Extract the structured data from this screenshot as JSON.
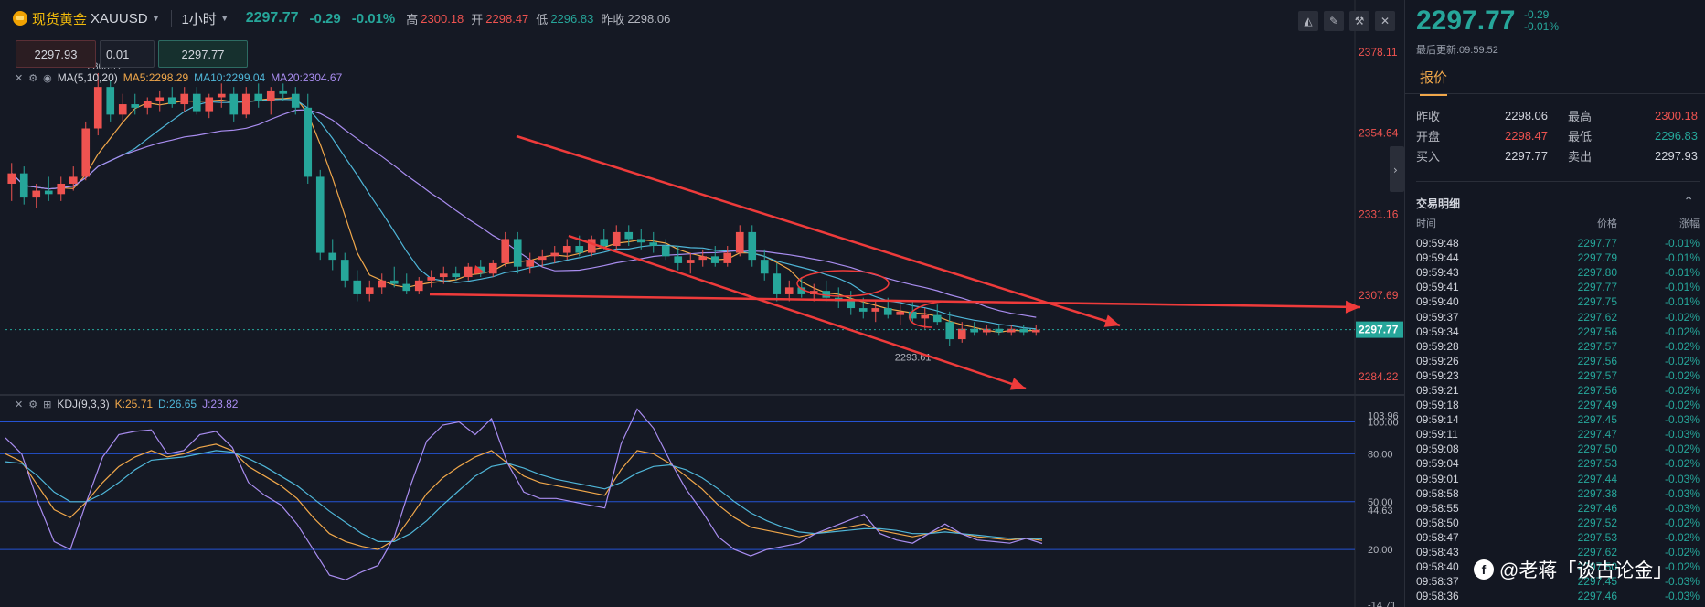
{
  "header": {
    "instrument_name": "现货黄金",
    "symbol": "XAUUSD",
    "timeframe": "1小时",
    "last_price": "2297.77",
    "change": "-0.29",
    "change_pct": "-0.01%",
    "high_label": "高",
    "high": "2300.18",
    "open_label": "开",
    "open": "2298.47",
    "low_label": "低",
    "low": "2296.83",
    "prev_label": "昨收",
    "prev": "2298.06",
    "tools": [
      "chart-type-icon",
      "draw-icon",
      "indicator-icon",
      "close-icon"
    ]
  },
  "order": {
    "sell_price": "2297.93",
    "quantity": "0.01",
    "buy_price": "2297.77"
  },
  "ma_legend": {
    "name": "MA(5,10,20)",
    "ma5": "MA5:2298.29",
    "ma10": "MA10:2299.04",
    "ma20": "MA20:2304.67"
  },
  "kdj_legend": {
    "name": "KDJ(9,3,3)",
    "k": "K:25.71",
    "d": "D:26.65",
    "j": "J:23.82"
  },
  "chart_data": [
    {
      "type": "candlestick",
      "title": "",
      "price_axis_ticks": [
        2378.11,
        2354.64,
        2331.16,
        2307.69,
        2284.22
      ],
      "ylim": [
        2281,
        2381
      ],
      "current_price_label": "2297.77",
      "annotations": {
        "high_marker": "2368.72",
        "low_marker": "2293.61"
      },
      "colors": {
        "up": "#ef5350",
        "down": "#26a69a",
        "ma5": "#f0a74a",
        "ma10": "#4fb6d8",
        "ma20": "#a98df0",
        "arrow": "#ef3b3b"
      },
      "candles": [
        [
          2340,
          2346,
          2335,
          2343
        ],
        [
          2343,
          2345,
          2334,
          2336
        ],
        [
          2336,
          2340,
          2333,
          2338
        ],
        [
          2338,
          2342,
          2335,
          2337
        ],
        [
          2337,
          2342,
          2335,
          2340
        ],
        [
          2340,
          2345,
          2338,
          2342
        ],
        [
          2342,
          2358,
          2341,
          2356
        ],
        [
          2356,
          2372,
          2354,
          2368
        ],
        [
          2368,
          2370,
          2358,
          2360
        ],
        [
          2360,
          2366,
          2358,
          2363
        ],
        [
          2363,
          2366,
          2360,
          2362
        ],
        [
          2362,
          2365,
          2360,
          2364
        ],
        [
          2364,
          2367,
          2361,
          2365
        ],
        [
          2365,
          2368,
          2362,
          2363
        ],
        [
          2363,
          2368,
          2361,
          2366
        ],
        [
          2366,
          2368,
          2360,
          2361
        ],
        [
          2361,
          2366,
          2359,
          2365
        ],
        [
          2365,
          2369,
          2362,
          2366
        ],
        [
          2366,
          2368,
          2358,
          2360
        ],
        [
          2360,
          2368,
          2359,
          2366
        ],
        [
          2366,
          2369,
          2362,
          2364
        ],
        [
          2364,
          2368,
          2360,
          2367
        ],
        [
          2367,
          2369,
          2364,
          2366
        ],
        [
          2366,
          2368,
          2360,
          2362
        ],
        [
          2362,
          2366,
          2340,
          2342
        ],
        [
          2342,
          2344,
          2318,
          2320
        ],
        [
          2320,
          2324,
          2315,
          2318
        ],
        [
          2318,
          2320,
          2310,
          2312
        ],
        [
          2312,
          2315,
          2306,
          2308
        ],
        [
          2308,
          2312,
          2306,
          2310
        ],
        [
          2310,
          2314,
          2308,
          2312
        ],
        [
          2312,
          2316,
          2310,
          2311
        ],
        [
          2311,
          2314,
          2308,
          2309
        ],
        [
          2309,
          2313,
          2308,
          2312
        ],
        [
          2312,
          2315,
          2310,
          2313
        ],
        [
          2313,
          2316,
          2311,
          2314
        ],
        [
          2314,
          2316,
          2312,
          2313
        ],
        [
          2313,
          2317,
          2312,
          2316
        ],
        [
          2316,
          2318,
          2313,
          2314
        ],
        [
          2314,
          2318,
          2313,
          2317
        ],
        [
          2317,
          2326,
          2316,
          2324
        ],
        [
          2324,
          2326,
          2314,
          2316
        ],
        [
          2316,
          2320,
          2314,
          2318
        ],
        [
          2318,
          2321,
          2316,
          2319
        ],
        [
          2319,
          2322,
          2317,
          2320
        ],
        [
          2320,
          2324,
          2318,
          2322
        ],
        [
          2322,
          2325,
          2319,
          2320
        ],
        [
          2320,
          2325,
          2319,
          2324
        ],
        [
          2324,
          2327,
          2321,
          2322
        ],
        [
          2322,
          2328,
          2321,
          2326
        ],
        [
          2326,
          2328,
          2322,
          2324
        ],
        [
          2324,
          2327,
          2321,
          2323
        ],
        [
          2323,
          2326,
          2320,
          2322
        ],
        [
          2322,
          2324,
          2318,
          2319
        ],
        [
          2319,
          2322,
          2315,
          2317
        ],
        [
          2317,
          2320,
          2314,
          2318
        ],
        [
          2318,
          2321,
          2316,
          2319
        ],
        [
          2319,
          2322,
          2316,
          2317
        ],
        [
          2317,
          2322,
          2316,
          2320
        ],
        [
          2320,
          2328,
          2319,
          2326
        ],
        [
          2326,
          2328,
          2316,
          2318
        ],
        [
          2318,
          2321,
          2312,
          2314
        ],
        [
          2314,
          2317,
          2306,
          2308
        ],
        [
          2308,
          2312,
          2306,
          2310
        ],
        [
          2310,
          2313,
          2307,
          2308
        ],
        [
          2308,
          2311,
          2306,
          2309
        ],
        [
          2309,
          2312,
          2306,
          2307
        ],
        [
          2307,
          2310,
          2304,
          2306
        ],
        [
          2306,
          2309,
          2302,
          2304
        ],
        [
          2304,
          2307,
          2301,
          2303
        ],
        [
          2303,
          2306,
          2300,
          2304
        ],
        [
          2304,
          2307,
          2301,
          2302
        ],
        [
          2302,
          2305,
          2299,
          2303
        ],
        [
          2303,
          2306,
          2300,
          2301
        ],
        [
          2301,
          2304,
          2298,
          2302
        ],
        [
          2302,
          2305,
          2299,
          2300
        ],
        [
          2300,
          2303,
          2293,
          2295
        ],
        [
          2295,
          2300,
          2294,
          2298
        ],
        [
          2298,
          2300,
          2296,
          2297
        ],
        [
          2297,
          2299,
          2296,
          2298
        ],
        [
          2298,
          2299,
          2296,
          2297
        ],
        [
          2297,
          2299,
          2296,
          2298
        ],
        [
          2298,
          2299,
          2296,
          2297
        ],
        [
          2297,
          2299,
          2296,
          2297.77
        ]
      ]
    },
    {
      "type": "line",
      "title": "",
      "indicator": "KDJ(9,3,3)",
      "axis_ticks": [
        100.0,
        80.0,
        50.0,
        20.0
      ],
      "axis_labels": [
        "100.00",
        "103.96",
        "80.00",
        "50.00",
        "44.63",
        "20.00",
        "-14.71"
      ],
      "ylim": [
        -16,
        110
      ],
      "series": [
        {
          "name": "K",
          "color": "#f0a74a",
          "values": [
            80,
            75,
            60,
            45,
            40,
            50,
            62,
            72,
            78,
            82,
            78,
            80,
            84,
            86,
            82,
            72,
            66,
            60,
            52,
            40,
            30,
            25,
            22,
            20,
            26,
            40,
            55,
            65,
            72,
            78,
            82,
            74,
            66,
            62,
            60,
            58,
            56,
            54,
            70,
            82,
            80,
            74,
            66,
            58,
            48,
            40,
            34,
            32,
            30,
            28,
            30,
            32,
            34,
            36,
            32,
            30,
            28,
            30,
            33,
            30,
            28,
            27,
            26,
            27,
            25.71
          ]
        },
        {
          "name": "D",
          "color": "#4fb6d8",
          "values": [
            75,
            74,
            66,
            56,
            50,
            50,
            55,
            62,
            70,
            76,
            77,
            78,
            80,
            82,
            81,
            77,
            72,
            66,
            60,
            52,
            44,
            37,
            30,
            25,
            25,
            30,
            38,
            48,
            57,
            66,
            72,
            74,
            71,
            67,
            64,
            62,
            60,
            58,
            62,
            68,
            72,
            73,
            70,
            65,
            58,
            50,
            43,
            38,
            34,
            31,
            30,
            31,
            32,
            33,
            33,
            32,
            30,
            30,
            31,
            30,
            29,
            28,
            27,
            27,
            26.65
          ]
        },
        {
          "name": "J",
          "color": "#a98df0",
          "values": [
            90,
            80,
            50,
            25,
            20,
            50,
            78,
            92,
            94,
            95,
            80,
            82,
            92,
            94,
            84,
            62,
            54,
            48,
            36,
            20,
            4,
            1,
            6,
            10,
            28,
            60,
            88,
            98,
            100,
            92,
            102,
            74,
            56,
            52,
            52,
            50,
            48,
            46,
            86,
            108,
            96,
            76,
            58,
            44,
            28,
            20,
            16,
            20,
            22,
            24,
            30,
            34,
            38,
            42,
            30,
            26,
            24,
            30,
            36,
            30,
            26,
            25,
            24,
            27,
            23.82
          ]
        }
      ]
    }
  ],
  "sidebar": {
    "price": "2297.77",
    "change": "-0.29",
    "change_pct": "-0.01%",
    "updated": "最后更新:09:59:52",
    "tab": "报价",
    "quote": [
      {
        "k1": "昨收",
        "v1": "2298.06",
        "c1": "wht",
        "k2": "最高",
        "v2": "2300.18",
        "c2": "red"
      },
      {
        "k1": "开盘",
        "v1": "2298.47",
        "c1": "red",
        "k2": "最低",
        "v2": "2296.83",
        "c2": "grn"
      },
      {
        "k1": "买入",
        "v1": "2297.77",
        "c1": "wht",
        "k2": "卖出",
        "v2": "2297.93",
        "c2": "wht"
      }
    ],
    "trades_title": "交易明细",
    "trades_header": [
      "时间",
      "价格",
      "涨幅"
    ],
    "trades": [
      [
        "09:59:48",
        "2297.77",
        "-0.01%"
      ],
      [
        "09:59:44",
        "2297.79",
        "-0.01%"
      ],
      [
        "09:59:43",
        "2297.80",
        "-0.01%"
      ],
      [
        "09:59:41",
        "2297.77",
        "-0.01%"
      ],
      [
        "09:59:40",
        "2297.75",
        "-0.01%"
      ],
      [
        "09:59:37",
        "2297.62",
        "-0.02%"
      ],
      [
        "09:59:34",
        "2297.56",
        "-0.02%"
      ],
      [
        "09:59:28",
        "2297.57",
        "-0.02%"
      ],
      [
        "09:59:26",
        "2297.56",
        "-0.02%"
      ],
      [
        "09:59:23",
        "2297.57",
        "-0.02%"
      ],
      [
        "09:59:21",
        "2297.56",
        "-0.02%"
      ],
      [
        "09:59:18",
        "2297.49",
        "-0.02%"
      ],
      [
        "09:59:14",
        "2297.45",
        "-0.03%"
      ],
      [
        "09:59:11",
        "2297.47",
        "-0.03%"
      ],
      [
        "09:59:08",
        "2297.50",
        "-0.02%"
      ],
      [
        "09:59:04",
        "2297.53",
        "-0.02%"
      ],
      [
        "09:59:01",
        "2297.44",
        "-0.03%"
      ],
      [
        "09:58:58",
        "2297.38",
        "-0.03%"
      ],
      [
        "09:58:55",
        "2297.46",
        "-0.03%"
      ],
      [
        "09:58:50",
        "2297.52",
        "-0.02%"
      ],
      [
        "09:58:47",
        "2297.53",
        "-0.02%"
      ],
      [
        "09:58:43",
        "2297.62",
        "-0.02%"
      ],
      [
        "09:58:40",
        "2297.50",
        "-0.02%"
      ],
      [
        "09:58:37",
        "2297.45",
        "-0.03%"
      ],
      [
        "09:58:36",
        "2297.46",
        "-0.03%"
      ]
    ]
  },
  "watermark": {
    "text": "@老蒋「谈古论金」"
  }
}
